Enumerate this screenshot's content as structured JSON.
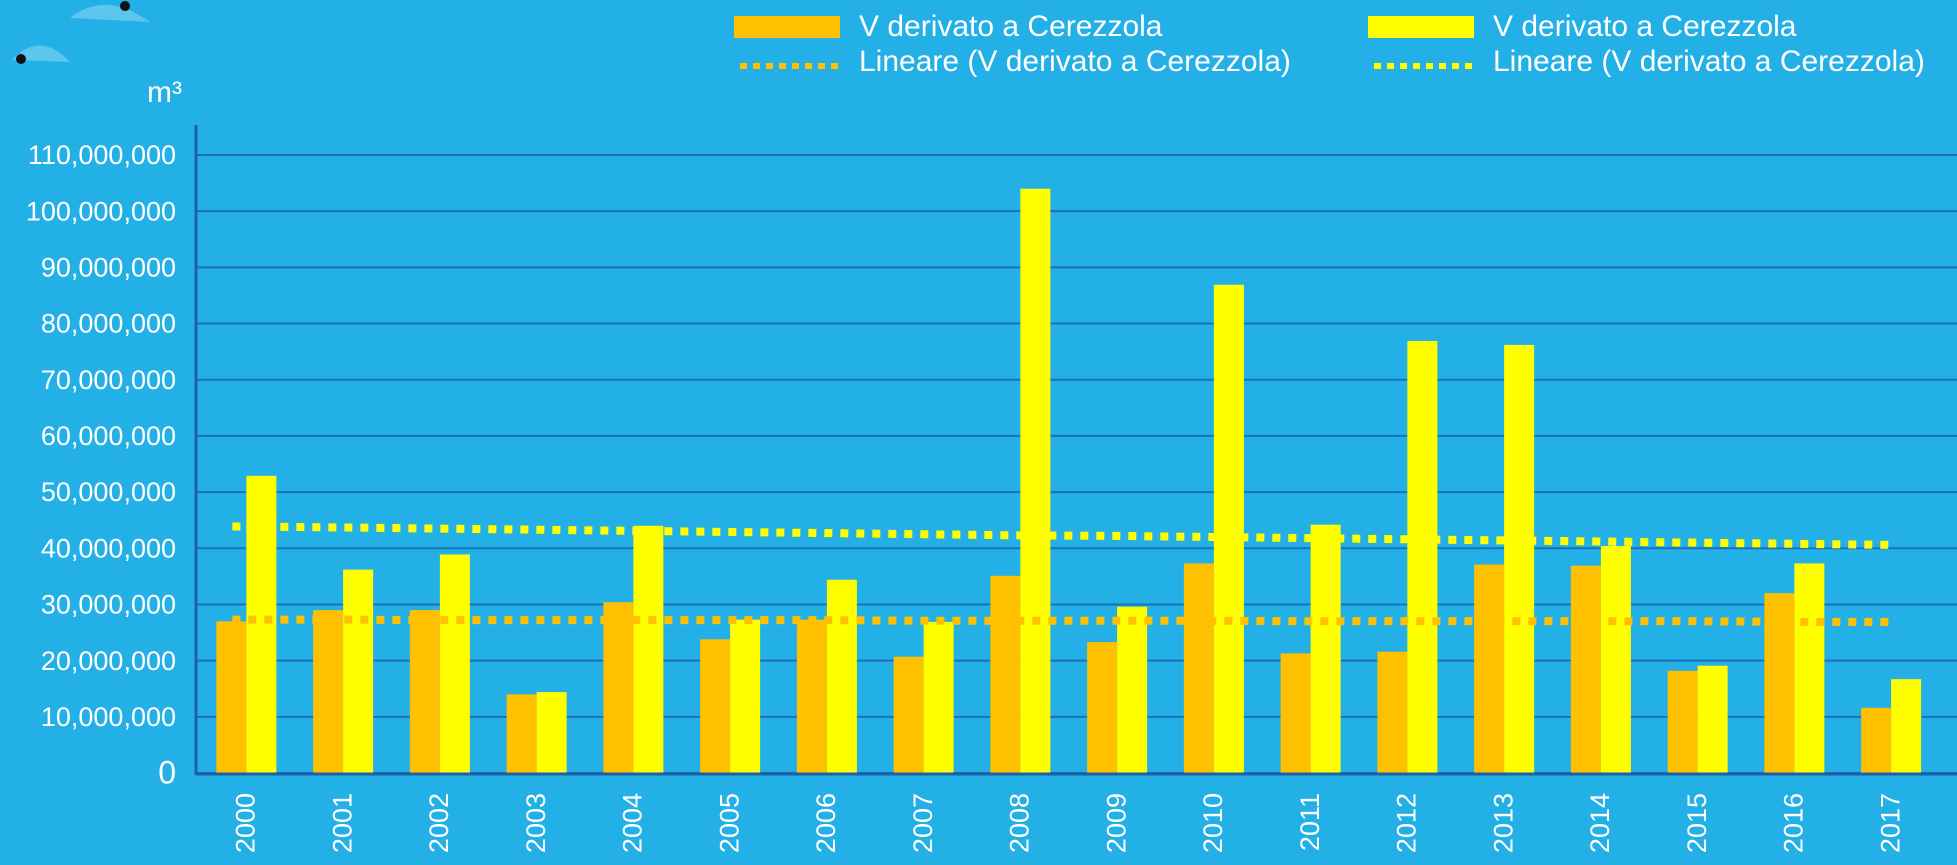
{
  "chart_data": {
    "type": "bar",
    "y_label": "m³",
    "categories": [
      "2000",
      "2001",
      "2002",
      "2003",
      "2004",
      "2005",
      "2006",
      "2007",
      "2008",
      "2009",
      "2010",
      "2011",
      "2012",
      "2013",
      "2014",
      "2015",
      "2016",
      "2017"
    ],
    "series": [
      {
        "name": "V derivato a Cerezzola",
        "kind": "bar",
        "color": "#ffc000",
        "values": [
          27000000,
          29000000,
          29000000,
          14000000,
          30400000,
          23800000,
          27300000,
          20700000,
          35100000,
          23300000,
          37300000,
          21300000,
          21600000,
          37100000,
          36900000,
          18200000,
          32000000,
          11600000
        ]
      },
      {
        "name": "V derivato a Cerezzola",
        "kind": "bar",
        "color": "#ffff00",
        "values": [
          52900000,
          36200000,
          38900000,
          14400000,
          44000000,
          27300000,
          34400000,
          26900000,
          104000000,
          29600000,
          86900000,
          44200000,
          76900000,
          76200000,
          40400000,
          19100000,
          37300000,
          16700000
        ]
      },
      {
        "name": "Lineare (V derivato a Cerezzola)",
        "kind": "trend",
        "color": "#ffc000",
        "values": [
          27300000,
          27300000,
          27200000,
          27200000,
          27200000,
          27200000,
          27200000,
          27100000,
          27100000,
          27100000,
          27100000,
          27000000,
          27000000,
          27000000,
          27000000,
          27000000,
          26900000,
          26900000
        ]
      },
      {
        "name": "Lineare (V derivato a Cerezzola)",
        "kind": "trend",
        "color": "#ffff00",
        "values": [
          43900000,
          43700000,
          43500000,
          43300000,
          43100000,
          42900000,
          42700000,
          42500000,
          42300000,
          42200000,
          42000000,
          41800000,
          41600000,
          41400000,
          41200000,
          41000000,
          40800000,
          40600000
        ]
      }
    ],
    "ylim": [
      0,
      110000000
    ],
    "yticks": [
      0,
      {
        "value": 10000000,
        "label": "10,000,000"
      },
      {
        "value": 20000000,
        "label": "20,000,000"
      },
      {
        "value": 30000000,
        "label": "30,000,000"
      },
      {
        "value": 40000000,
        "label": "40,000,000"
      },
      {
        "value": 50000000,
        "label": "50,000,000"
      },
      {
        "value": 60000000,
        "label": "60,000,000"
      },
      {
        "value": 70000000,
        "label": "70,000,000"
      },
      {
        "value": 80000000,
        "label": "80,000,000"
      },
      {
        "value": 90000000,
        "label": "90,000,000"
      },
      {
        "value": 100000000,
        "label": "100,000,000"
      },
      {
        "value": 110000000,
        "label": "110,000,000"
      }
    ],
    "grid": true,
    "legend": "top-right"
  }
}
